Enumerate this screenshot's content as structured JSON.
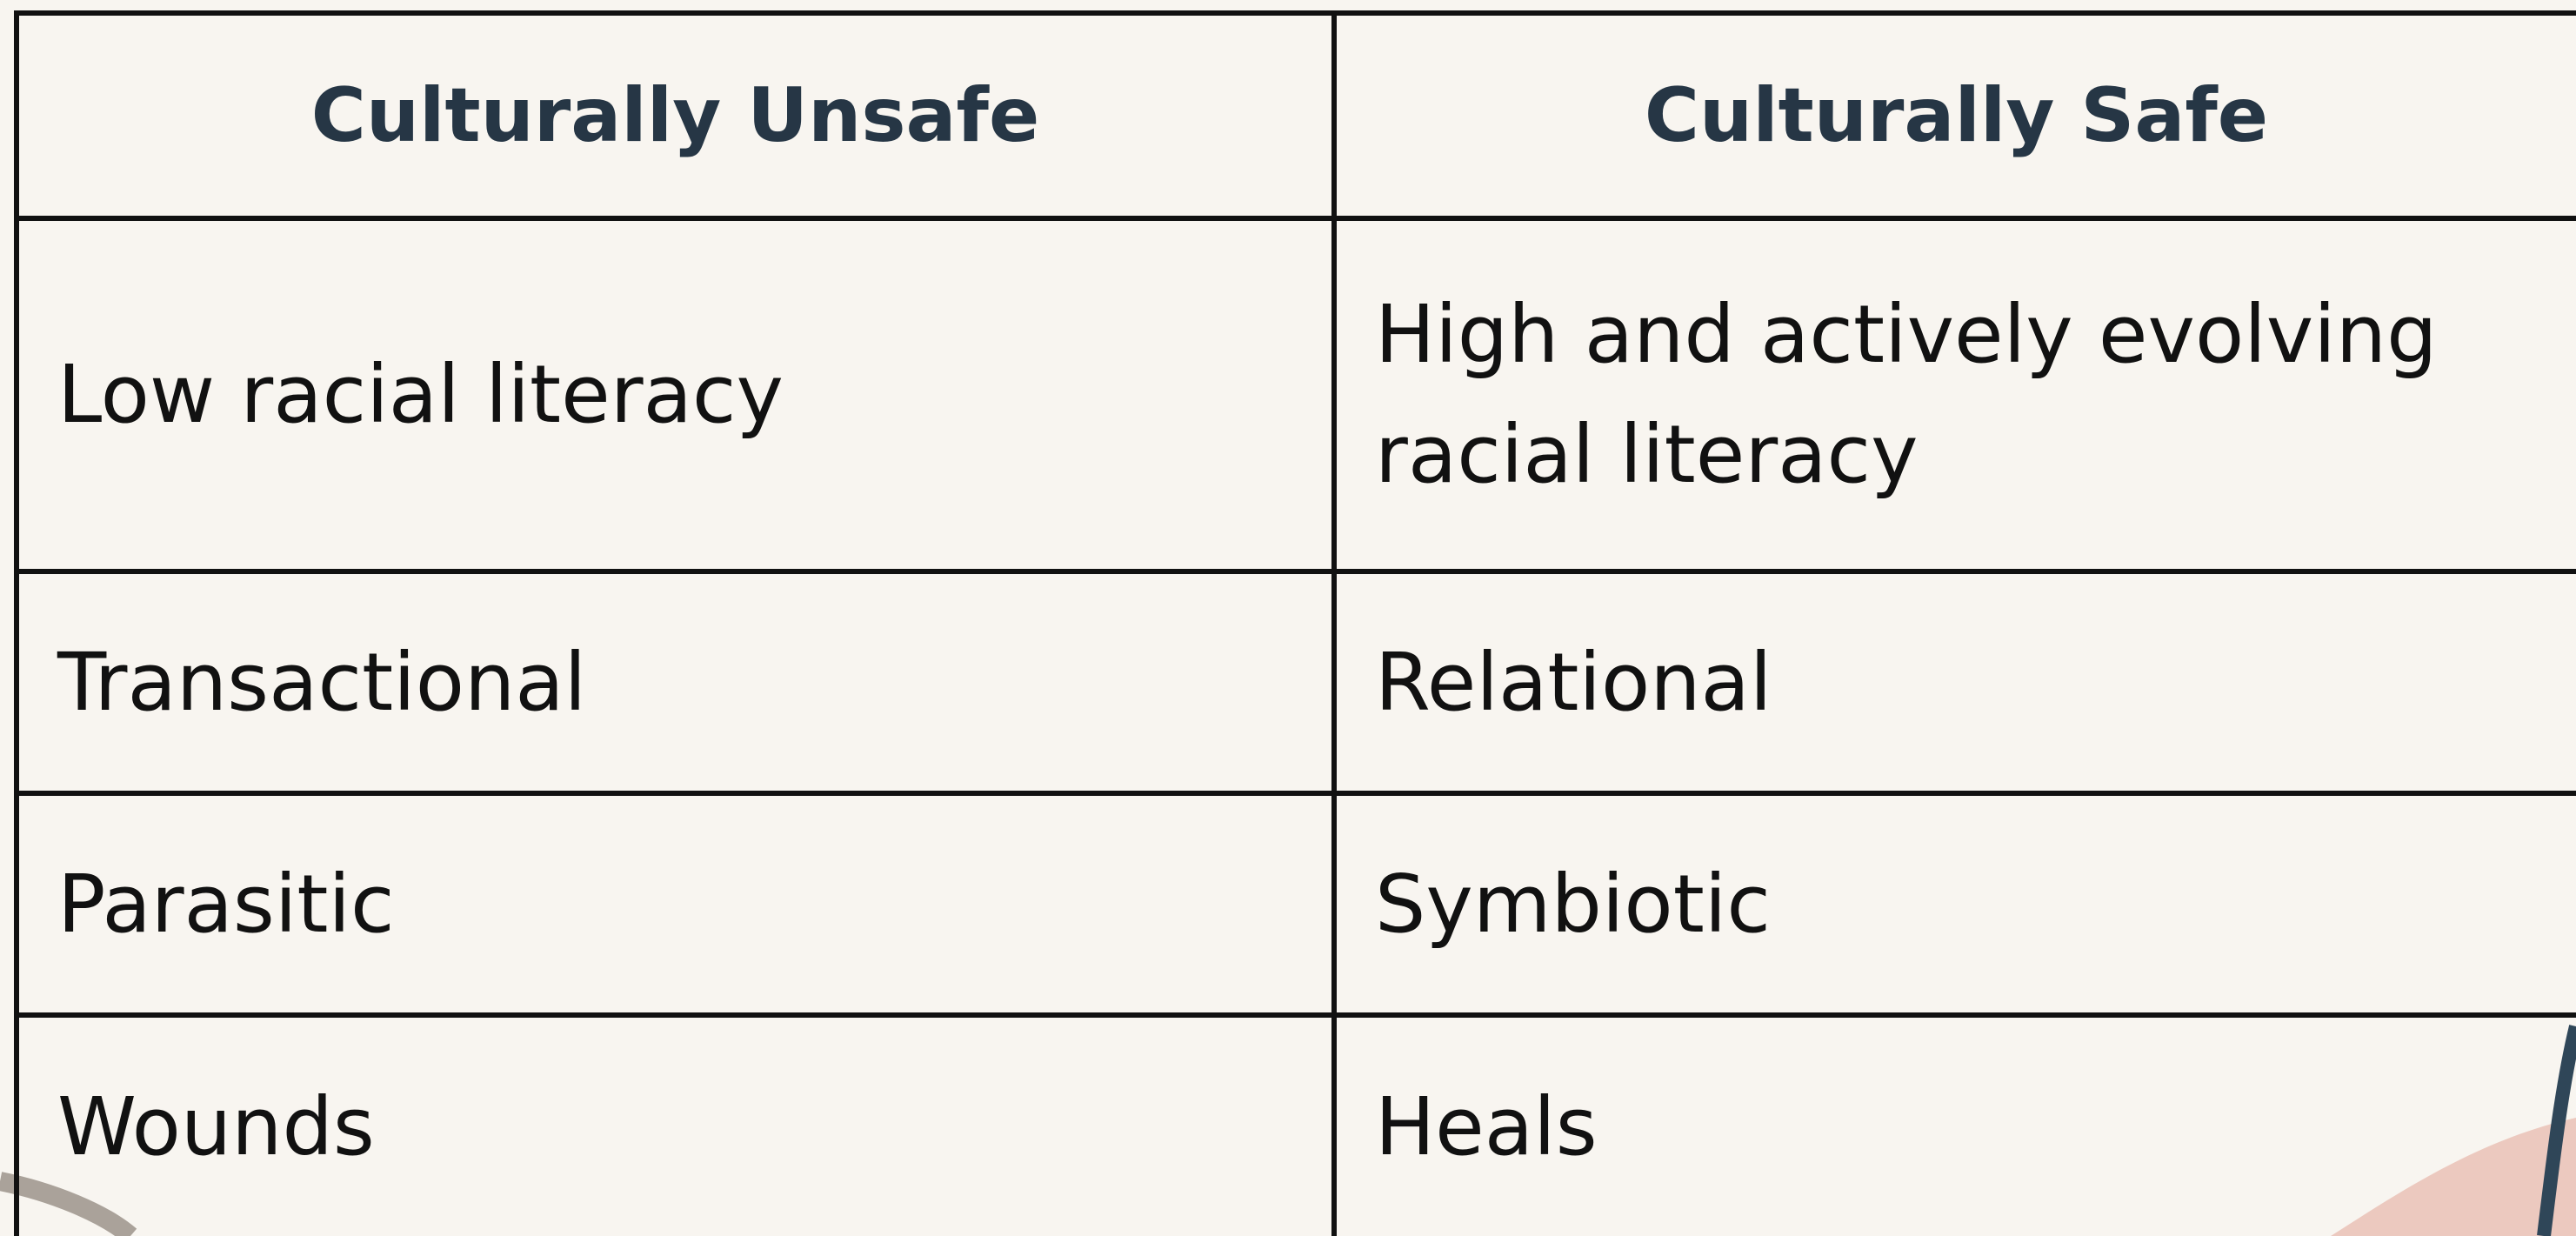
{
  "table": {
    "headers": [
      "Culturally Unsafe",
      "Culturally Safe"
    ],
    "rows": [
      [
        "Low racial literacy",
        "High and actively evolving racial literacy"
      ],
      [
        "Transactional",
        "Relational"
      ],
      [
        "Parasitic",
        "Symbiotic"
      ],
      [
        "Wounds",
        "Heals"
      ]
    ]
  }
}
